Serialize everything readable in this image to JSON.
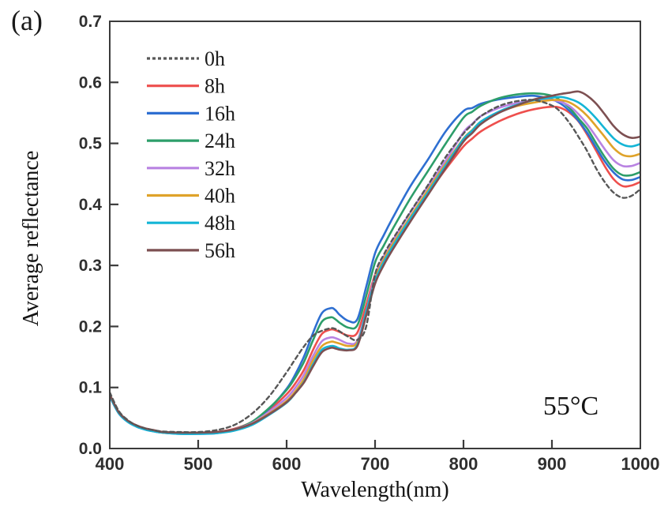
{
  "figure_label": "(a)",
  "annotation": {
    "text": "55°C"
  },
  "chart_data": {
    "type": "line",
    "title": "",
    "xlabel": "Wavelength(nm)",
    "ylabel": "Average reflectance",
    "xlim": [
      400,
      1000
    ],
    "ylim": [
      0.0,
      0.7
    ],
    "x_ticks": [
      400,
      500,
      600,
      700,
      800,
      900,
      1000
    ],
    "y_ticks": [
      0.0,
      0.1,
      0.2,
      0.3,
      0.4,
      0.5,
      0.6,
      0.7
    ],
    "grid": false,
    "legend_position": "upper-left-inside",
    "frame_color": "#3b3b3b",
    "x": [
      400,
      410,
      420,
      430,
      440,
      450,
      460,
      480,
      500,
      520,
      540,
      560,
      580,
      600,
      610,
      620,
      630,
      640,
      650,
      655,
      660,
      670,
      680,
      690,
      700,
      710,
      720,
      740,
      760,
      780,
      800,
      810,
      820,
      840,
      860,
      880,
      900,
      910,
      920,
      930,
      940,
      950,
      960,
      970,
      980,
      990,
      1000
    ],
    "series": [
      {
        "name": "0h",
        "color": "#575757",
        "style": "dashed",
        "values": [
          0.092,
          0.062,
          0.047,
          0.038,
          0.033,
          0.03,
          0.028,
          0.027,
          0.027,
          0.03,
          0.038,
          0.056,
          0.085,
          0.125,
          0.147,
          0.168,
          0.185,
          0.193,
          0.197,
          0.196,
          0.192,
          0.183,
          0.178,
          0.2,
          0.285,
          0.318,
          0.343,
          0.388,
          0.432,
          0.478,
          0.516,
          0.531,
          0.545,
          0.561,
          0.569,
          0.571,
          0.562,
          0.551,
          0.533,
          0.511,
          0.487,
          0.459,
          0.436,
          0.419,
          0.411,
          0.414,
          0.425
        ]
      },
      {
        "name": "8h",
        "color": "#ee4f4d",
        "style": "solid",
        "values": [
          0.088,
          0.06,
          0.046,
          0.038,
          0.033,
          0.03,
          0.027,
          0.026,
          0.026,
          0.027,
          0.032,
          0.043,
          0.063,
          0.089,
          0.107,
          0.13,
          0.162,
          0.188,
          0.195,
          0.194,
          0.191,
          0.185,
          0.19,
          0.235,
          0.285,
          0.312,
          0.335,
          0.378,
          0.418,
          0.458,
          0.495,
          0.508,
          0.52,
          0.536,
          0.548,
          0.556,
          0.56,
          0.558,
          0.55,
          0.536,
          0.514,
          0.488,
          0.462,
          0.441,
          0.43,
          0.431,
          0.437
        ]
      },
      {
        "name": "16h",
        "color": "#2e6fd1",
        "style": "solid",
        "values": [
          0.085,
          0.058,
          0.044,
          0.036,
          0.031,
          0.028,
          0.026,
          0.024,
          0.024,
          0.025,
          0.03,
          0.042,
          0.065,
          0.098,
          0.122,
          0.152,
          0.19,
          0.222,
          0.23,
          0.227,
          0.219,
          0.209,
          0.212,
          0.265,
          0.32,
          0.35,
          0.378,
          0.43,
          0.474,
          0.52,
          0.553,
          0.558,
          0.565,
          0.572,
          0.576,
          0.578,
          0.572,
          0.565,
          0.553,
          0.537,
          0.517,
          0.493,
          0.47,
          0.452,
          0.441,
          0.44,
          0.445
        ]
      },
      {
        "name": "24h",
        "color": "#2d9e6a",
        "style": "solid",
        "values": [
          0.086,
          0.059,
          0.045,
          0.037,
          0.032,
          0.029,
          0.027,
          0.025,
          0.025,
          0.026,
          0.031,
          0.043,
          0.066,
          0.096,
          0.117,
          0.143,
          0.178,
          0.208,
          0.215,
          0.212,
          0.206,
          0.198,
          0.202,
          0.25,
          0.305,
          0.333,
          0.36,
          0.41,
          0.455,
          0.5,
          0.542,
          0.552,
          0.562,
          0.574,
          0.58,
          0.582,
          0.578,
          0.57,
          0.558,
          0.541,
          0.524,
          0.5,
          0.477,
          0.458,
          0.448,
          0.448,
          0.453
        ]
      },
      {
        "name": "32h",
        "color": "#b983e2",
        "style": "solid",
        "values": [
          0.087,
          0.059,
          0.045,
          0.037,
          0.032,
          0.029,
          0.027,
          0.025,
          0.025,
          0.026,
          0.031,
          0.041,
          0.06,
          0.083,
          0.1,
          0.122,
          0.152,
          0.176,
          0.182,
          0.181,
          0.178,
          0.172,
          0.177,
          0.225,
          0.283,
          0.315,
          0.341,
          0.387,
          0.43,
          0.472,
          0.518,
          0.532,
          0.545,
          0.558,
          0.566,
          0.571,
          0.571,
          0.568,
          0.561,
          0.548,
          0.531,
          0.511,
          0.49,
          0.472,
          0.463,
          0.463,
          0.468
        ]
      },
      {
        "name": "40h",
        "color": "#dfa32a",
        "style": "solid",
        "values": [
          0.087,
          0.059,
          0.045,
          0.037,
          0.032,
          0.029,
          0.026,
          0.025,
          0.025,
          0.026,
          0.03,
          0.04,
          0.057,
          0.078,
          0.094,
          0.115,
          0.145,
          0.168,
          0.175,
          0.174,
          0.172,
          0.168,
          0.174,
          0.22,
          0.278,
          0.31,
          0.335,
          0.38,
          0.424,
          0.467,
          0.508,
          0.522,
          0.536,
          0.551,
          0.561,
          0.567,
          0.571,
          0.571,
          0.567,
          0.558,
          0.545,
          0.528,
          0.51,
          0.492,
          0.481,
          0.479,
          0.483
        ]
      },
      {
        "name": "48h",
        "color": "#14b5d6",
        "style": "solid",
        "values": [
          0.086,
          0.058,
          0.044,
          0.036,
          0.031,
          0.028,
          0.026,
          0.024,
          0.024,
          0.025,
          0.029,
          0.038,
          0.055,
          0.075,
          0.091,
          0.11,
          0.138,
          0.162,
          0.168,
          0.167,
          0.164,
          0.162,
          0.17,
          0.225,
          0.275,
          0.306,
          0.331,
          0.377,
          0.42,
          0.464,
          0.507,
          0.521,
          0.536,
          0.552,
          0.563,
          0.571,
          0.575,
          0.576,
          0.573,
          0.567,
          0.556,
          0.541,
          0.524,
          0.508,
          0.498,
          0.495,
          0.499
        ]
      },
      {
        "name": "56h",
        "color": "#7d5052",
        "style": "solid",
        "values": [
          0.088,
          0.06,
          0.046,
          0.038,
          0.033,
          0.03,
          0.027,
          0.026,
          0.026,
          0.027,
          0.031,
          0.04,
          0.056,
          0.076,
          0.091,
          0.109,
          0.135,
          0.158,
          0.165,
          0.164,
          0.162,
          0.161,
          0.168,
          0.218,
          0.27,
          0.301,
          0.326,
          0.372,
          0.416,
          0.46,
          0.503,
          0.517,
          0.532,
          0.55,
          0.562,
          0.572,
          0.578,
          0.581,
          0.583,
          0.585,
          0.578,
          0.565,
          0.547,
          0.528,
          0.515,
          0.509,
          0.511
        ]
      }
    ]
  }
}
